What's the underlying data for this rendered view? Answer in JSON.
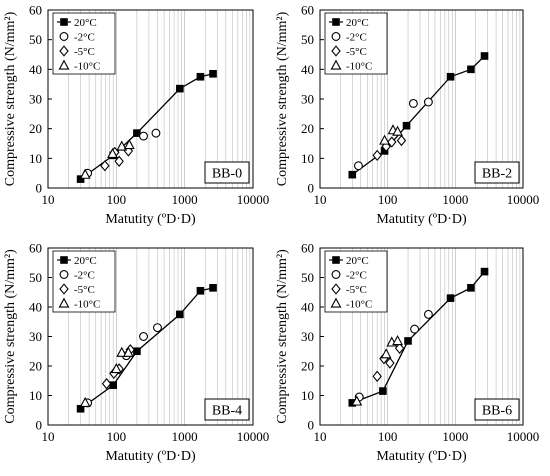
{
  "figure": {
    "panels": [
      "BB-0",
      "BB-2",
      "BB-4",
      "BB-6"
    ]
  },
  "chart_data": [
    {
      "type": "scatter",
      "title": "BB-0",
      "xlabel": "Matutity (ºD·D)",
      "ylabel": "Compressive strength (N/mm²)",
      "x_scale": "log",
      "xlim": [
        10,
        10000
      ],
      "ylim": [
        0,
        60
      ],
      "x_ticks": [
        "10",
        "100",
        "1000",
        "10000"
      ],
      "y_ticks": [
        "0",
        "10",
        "20",
        "30",
        "40",
        "50",
        "60"
      ],
      "grid": "vertical minor log gridlines",
      "legend": "top-left",
      "series": [
        {
          "name": "20°C",
          "marker": "filled-square",
          "line": true,
          "points": [
            [
              30,
              3
            ],
            [
              90,
              11
            ],
            [
              200,
              18.5
            ],
            [
              850,
              33.5
            ],
            [
              1700,
              37.5
            ],
            [
              2600,
              38.5
            ]
          ]
        },
        {
          "name": "-2°C",
          "marker": "open-circle",
          "line": false,
          "points": [
            [
              38,
              5
            ],
            [
              250,
              17.5
            ],
            [
              380,
              18.5
            ]
          ]
        },
        {
          "name": "-5°C",
          "marker": "open-diamond",
          "line": false,
          "points": [
            [
              68,
              7.5
            ],
            [
              95,
              12
            ],
            [
              110,
              9
            ],
            [
              150,
              12.5
            ]
          ]
        },
        {
          "name": "-10°C",
          "marker": "open-triangle",
          "line": false,
          "points": [
            [
              35,
              4.5
            ],
            [
              88,
              11.5
            ],
            [
              120,
              14
            ],
            [
              155,
              14.5
            ]
          ]
        }
      ]
    },
    {
      "type": "scatter",
      "title": "BB-2",
      "xlabel": "Matutity (ºD·D)",
      "ylabel": "Compressive strength (N/mm²)",
      "x_scale": "log",
      "xlim": [
        10,
        10000
      ],
      "ylim": [
        0,
        60
      ],
      "x_ticks": [
        "10",
        "100",
        "1000",
        "10000"
      ],
      "y_ticks": [
        "0",
        "10",
        "20",
        "30",
        "40",
        "50",
        "60"
      ],
      "grid": "vertical minor log gridlines",
      "legend": "top-left",
      "series": [
        {
          "name": "20°C",
          "marker": "filled-square",
          "line": true,
          "points": [
            [
              30,
              4.5
            ],
            [
              90,
              12.5
            ],
            [
              190,
              21
            ],
            [
              850,
              37.5
            ],
            [
              1700,
              40
            ],
            [
              2700,
              44.5
            ]
          ]
        },
        {
          "name": "-2°C",
          "marker": "open-circle",
          "line": false,
          "points": [
            [
              37,
              7.5
            ],
            [
              240,
              28.5
            ],
            [
              400,
              29
            ]
          ]
        },
        {
          "name": "-5°C",
          "marker": "open-diamond",
          "line": false,
          "points": [
            [
              70,
              11
            ],
            [
              95,
              14
            ],
            [
              115,
              15.5
            ],
            [
              160,
              16
            ]
          ]
        },
        {
          "name": "-10°C",
          "marker": "open-triangle",
          "line": false,
          "points": [
            [
              90,
              16
            ],
            [
              120,
              19.5
            ],
            [
              140,
              19
            ]
          ]
        }
      ]
    },
    {
      "type": "scatter",
      "title": "BB-4",
      "xlabel": "Matutity (ºD·D)",
      "ylabel": "Compressive strength (N/mm²)",
      "x_scale": "log",
      "xlim": [
        10,
        10000
      ],
      "ylim": [
        0,
        60
      ],
      "x_ticks": [
        "10",
        "100",
        "1000",
        "10000"
      ],
      "y_ticks": [
        "0",
        "10",
        "20",
        "30",
        "40",
        "50",
        "60"
      ],
      "grid": "vertical minor log gridlines",
      "legend": "top-left",
      "series": [
        {
          "name": "20°C",
          "marker": "filled-square",
          "line": true,
          "points": [
            [
              30,
              5.5
            ],
            [
              90,
              13.5
            ],
            [
              200,
              25
            ],
            [
              850,
              37.5
            ],
            [
              1700,
              45.5
            ],
            [
              2600,
              46.5
            ]
          ]
        },
        {
          "name": "-2°C",
          "marker": "open-circle",
          "line": false,
          "points": [
            [
              38,
              7.5
            ],
            [
              140,
              23.5
            ],
            [
              250,
              30
            ],
            [
              400,
              33
            ]
          ]
        },
        {
          "name": "-5°C",
          "marker": "open-diamond",
          "line": false,
          "points": [
            [
              72,
              14
            ],
            [
              92,
              17.5
            ],
            [
              110,
              19
            ],
            [
              160,
              25.5
            ]
          ]
        },
        {
          "name": "-10°C",
          "marker": "open-triangle",
          "line": false,
          "points": [
            [
              35,
              7.5
            ],
            [
              100,
              19
            ],
            [
              120,
              24.5
            ],
            [
              150,
              24.5
            ]
          ]
        }
      ]
    },
    {
      "type": "scatter",
      "title": "BB-6",
      "xlabel": "Matutity (ºD·D)",
      "ylabel": "Compressive strength (N/mm²)",
      "x_scale": "log",
      "xlim": [
        10,
        10000
      ],
      "ylim": [
        0,
        60
      ],
      "x_ticks": [
        "10",
        "100",
        "1000",
        "10000"
      ],
      "y_ticks": [
        "0",
        "10",
        "20",
        "30",
        "40",
        "50",
        "60"
      ],
      "grid": "vertical minor log gridlines",
      "legend": "top-left",
      "series": [
        {
          "name": "20°C",
          "marker": "filled-square",
          "line": true,
          "points": [
            [
              30,
              7.5
            ],
            [
              85,
              11.5
            ],
            [
              200,
              28.5
            ],
            [
              850,
              43
            ],
            [
              1700,
              46.5
            ],
            [
              2700,
              52
            ]
          ]
        },
        {
          "name": "-2°C",
          "marker": "open-circle",
          "line": false,
          "points": [
            [
              38,
              9.5
            ],
            [
              250,
              32.5
            ],
            [
              400,
              37.5
            ]
          ]
        },
        {
          "name": "-5°C",
          "marker": "open-diamond",
          "line": false,
          "points": [
            [
              70,
              16.5
            ],
            [
              88,
              22.5
            ],
            [
              108,
              21
            ],
            [
              150,
              26
            ]
          ]
        },
        {
          "name": "-10°C",
          "marker": "open-triangle",
          "line": false,
          "points": [
            [
              35,
              8
            ],
            [
              95,
              24
            ],
            [
              115,
              28
            ],
            [
              140,
              28.5
            ]
          ]
        }
      ]
    }
  ]
}
